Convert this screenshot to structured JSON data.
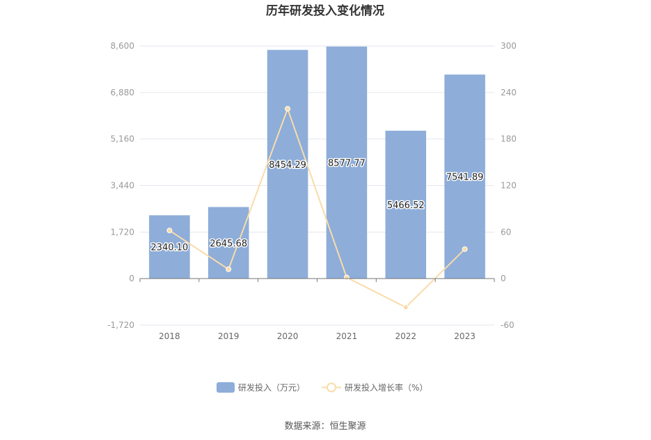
{
  "chart_data": {
    "type": "bar",
    "title": "历年研发投入变化情况",
    "categories": [
      "2018",
      "2019",
      "2020",
      "2021",
      "2022",
      "2023"
    ],
    "series": [
      {
        "name": "研发投入（万元）",
        "type": "bar",
        "axis": "left",
        "color": "#8eadd9",
        "values": [
          2340.1,
          2645.68,
          8454.29,
          8577.77,
          5466.52,
          7541.89
        ],
        "labels": [
          "2340.10",
          "2645.68",
          "8454.29",
          "8577.77",
          "5466.52",
          "7541.89"
        ]
      },
      {
        "name": "研发投入增长率（%）",
        "type": "line",
        "axis": "right",
        "color": "#f8dcaa",
        "values": [
          62.0,
          12.0,
          219.0,
          1.5,
          -37.0,
          38.0
        ]
      }
    ],
    "y_left": {
      "ticks": [
        "8,600",
        "6,880",
        "5,160",
        "3,440",
        "1,720",
        "0",
        "-1,720"
      ],
      "ylim": [
        -1720,
        8600
      ]
    },
    "y_right": {
      "ticks": [
        "300",
        "240",
        "180",
        "120",
        "60",
        "0",
        "-60"
      ],
      "ylim": [
        -60,
        300
      ]
    },
    "grid": true,
    "legend_position": "bottom"
  },
  "source": "数据来源：恒生聚源"
}
